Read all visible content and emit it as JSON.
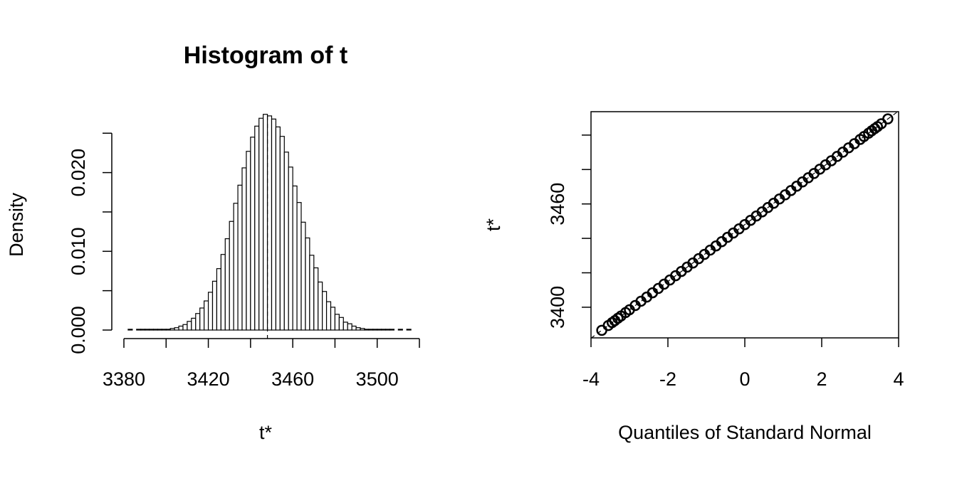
{
  "chart_data": [
    {
      "type": "histogram",
      "title": "Histogram of t",
      "xlabel": "t*",
      "ylabel": "Density",
      "bins": [
        3380,
        3382,
        3384,
        3386,
        3388,
        3390,
        3392,
        3394,
        3396,
        3398,
        3400,
        3402,
        3404,
        3406,
        3408,
        3410,
        3412,
        3414,
        3416,
        3418,
        3420,
        3422,
        3424,
        3426,
        3428,
        3430,
        3432,
        3434,
        3436,
        3438,
        3440,
        3442,
        3444,
        3446,
        3448,
        3450,
        3452,
        3454,
        3456,
        3458,
        3460,
        3462,
        3464,
        3466,
        3468,
        3470,
        3472,
        3474,
        3476,
        3478,
        3480,
        3482,
        3484,
        3486,
        3488,
        3490,
        3492,
        3494,
        3496,
        3498,
        3500,
        3502,
        3504,
        3506,
        3508,
        3510,
        3512,
        3514,
        3516
      ],
      "values": [
        0,
        0.0001,
        0,
        0.0001,
        0.0001,
        0.0001,
        0.0001,
        0.0001,
        0.0001,
        0.0001,
        0.0001,
        0.0002,
        0.0003,
        0.0005,
        0.0007,
        0.0011,
        0.0015,
        0.0021,
        0.0028,
        0.0037,
        0.0048,
        0.0062,
        0.0078,
        0.0096,
        0.0116,
        0.0138,
        0.0161,
        0.0184,
        0.0206,
        0.0227,
        0.0245,
        0.0259,
        0.0269,
        0.0274,
        0.0272,
        0.0268,
        0.0258,
        0.0246,
        0.0226,
        0.0207,
        0.0183,
        0.0162,
        0.0137,
        0.0117,
        0.0095,
        0.0079,
        0.0061,
        0.0049,
        0.0036,
        0.0029,
        0.002,
        0.0016,
        0.001,
        0.0008,
        0.0005,
        0.0003,
        0.0002,
        0.0001,
        0.0001,
        0.0001,
        0.0001,
        0.0001,
        0.0001,
        0.0001,
        0,
        0.0001,
        0,
        0.0001
      ],
      "color": "#ffffff",
      "edgecolor": "#000000",
      "observed": 3448,
      "xlim": [
        3380,
        3520
      ],
      "xticks": [
        3380,
        3420,
        3460,
        3500
      ],
      "xminor_ticks": [
        3400,
        3440,
        3480,
        3520
      ],
      "ylim": [
        0,
        0.029
      ],
      "yticks": [
        {
          "value": 0,
          "label": "0.000"
        },
        {
          "value": 0.01,
          "label": "0.010"
        },
        {
          "value": 0.02,
          "label": "0.020"
        }
      ],
      "yminor_ticks": [
        0.005,
        0.015,
        0.025
      ]
    },
    {
      "type": "qq",
      "xlabel": "Quantiles of Standard Normal",
      "ylabel": "t*",
      "x": [
        -3.72,
        -3.55,
        -3.45,
        -3.38,
        -3.3,
        -3.22,
        -3.1,
        -3.0,
        -2.85,
        -2.7,
        -2.55,
        -2.4,
        -2.25,
        -2.1,
        -1.95,
        -1.8,
        -1.65,
        -1.5,
        -1.35,
        -1.2,
        -1.05,
        -0.9,
        -0.75,
        -0.6,
        -0.45,
        -0.3,
        -0.15,
        0,
        0.15,
        0.3,
        0.45,
        0.6,
        0.75,
        0.9,
        1.05,
        1.2,
        1.35,
        1.5,
        1.65,
        1.8,
        1.95,
        2.1,
        2.25,
        2.4,
        2.55,
        2.7,
        2.85,
        3.0,
        3.1,
        3.22,
        3.3,
        3.38,
        3.45,
        3.55,
        3.72
      ],
      "values": [
        3386.6,
        3389.4,
        3391.1,
        3392.2,
        3393.6,
        3394.9,
        3396.9,
        3398.5,
        3401.0,
        3403.5,
        3405.9,
        3408.4,
        3410.9,
        3413.4,
        3415.8,
        3418.3,
        3420.8,
        3423.3,
        3425.7,
        3428.2,
        3430.7,
        3433.2,
        3435.6,
        3438.1,
        3440.6,
        3443.1,
        3445.5,
        3448,
        3450.5,
        3453,
        3455.4,
        3457.9,
        3460.4,
        3462.9,
        3465.3,
        3467.8,
        3470.3,
        3472.8,
        3475.2,
        3477.7,
        3480.2,
        3482.7,
        3485.1,
        3487.6,
        3490.1,
        3492.6,
        3495.0,
        3497.5,
        3499.2,
        3501.1,
        3502.5,
        3503.8,
        3504.9,
        3506.6,
        3509.4
      ],
      "color": "#000000",
      "reference_line": {
        "intercept": 3448,
        "slope": 16.5
      },
      "xlim": [
        -4,
        4
      ],
      "xticks": [
        -4,
        -2,
        0,
        2,
        4
      ],
      "ylim": [
        3382.2,
        3513.6
      ],
      "yticks": [
        3400,
        3460
      ],
      "yminor_ticks": [
        3420,
        3440,
        3480,
        3500
      ]
    }
  ]
}
